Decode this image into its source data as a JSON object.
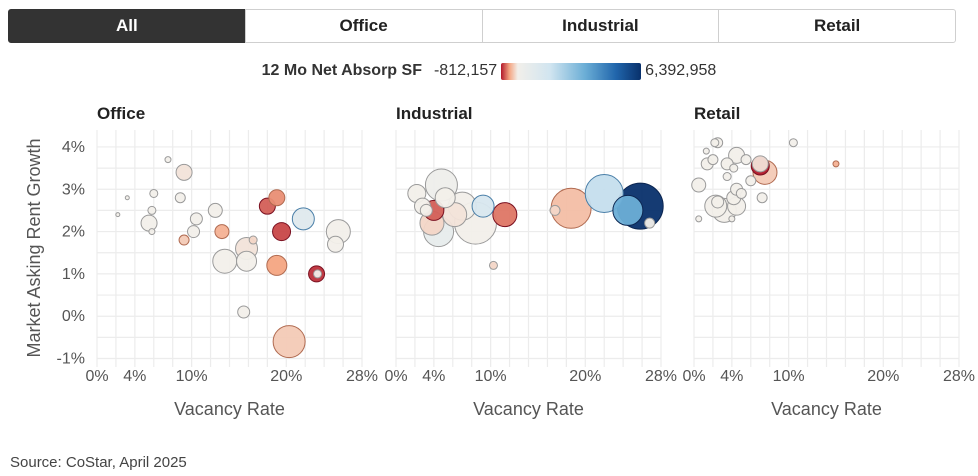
{
  "tabs": [
    {
      "label": "All",
      "active": true
    },
    {
      "label": "Office",
      "active": false
    },
    {
      "label": "Industrial",
      "active": false
    },
    {
      "label": "Retail",
      "active": false
    }
  ],
  "legend": {
    "title": "12 Mo Net Absorp SF",
    "min_label": "-812,157",
    "max_label": "6,392,958"
  },
  "source": "Source: CoStar, April 2025",
  "chart_data": {
    "type": "scatter",
    "ylabel": "Market Asking Rent Growth",
    "y_ticks": [
      "4%",
      "3%",
      "2%",
      "1%",
      "0%",
      "-1%"
    ],
    "y_tick_values": [
      4,
      3,
      2,
      1,
      0,
      -1
    ],
    "x_ticks": [
      "0%",
      "4%",
      "10%",
      "20%",
      "28%"
    ],
    "x_tick_values": [
      0,
      4,
      10,
      20,
      28
    ],
    "xlim": [
      0,
      28
    ],
    "ylim": [
      -1.2,
      4.4
    ],
    "absorption_range": [
      -812157,
      6392958
    ],
    "panels": [
      {
        "title": "Office",
        "xlabel": "Vacancy Rate",
        "points": [
          {
            "x": 7.5,
            "y": 3.7,
            "r": 3,
            "c": 0.12
          },
          {
            "x": 3.2,
            "y": 2.8,
            "r": 2,
            "c": 0.12
          },
          {
            "x": 2.2,
            "y": 2.4,
            "r": 2,
            "c": 0.12
          },
          {
            "x": 6.0,
            "y": 2.9,
            "r": 4,
            "c": 0.12
          },
          {
            "x": 5.8,
            "y": 2.5,
            "r": 4,
            "c": 0.12
          },
          {
            "x": 5.5,
            "y": 2.2,
            "r": 8,
            "c": 0.12
          },
          {
            "x": 5.8,
            "y": 2.0,
            "r": 3,
            "c": 0.12
          },
          {
            "x": 9.2,
            "y": 3.4,
            "r": 8,
            "c": 0.11
          },
          {
            "x": 8.8,
            "y": 2.8,
            "r": 5,
            "c": 0.12
          },
          {
            "x": 10.5,
            "y": 2.3,
            "r": 6,
            "c": 0.12
          },
          {
            "x": 10.2,
            "y": 2.0,
            "r": 6,
            "c": 0.12
          },
          {
            "x": 9.2,
            "y": 1.8,
            "r": 5,
            "c": 0.09
          },
          {
            "x": 12.5,
            "y": 2.5,
            "r": 7,
            "c": 0.12
          },
          {
            "x": 13.2,
            "y": 2.0,
            "r": 7,
            "c": 0.07
          },
          {
            "x": 13.5,
            "y": 1.3,
            "r": 12,
            "c": 0.12
          },
          {
            "x": 15.8,
            "y": 1.6,
            "r": 11,
            "c": 0.11
          },
          {
            "x": 15.8,
            "y": 1.3,
            "r": 10,
            "c": 0.12
          },
          {
            "x": 16.5,
            "y": 1.8,
            "r": 4,
            "c": 0.1
          },
          {
            "x": 18.0,
            "y": 2.6,
            "r": 8,
            "c": 0.03
          },
          {
            "x": 19.0,
            "y": 2.8,
            "r": 8,
            "c": 0.05
          },
          {
            "x": 19.0,
            "y": 1.2,
            "r": 10,
            "c": 0.06
          },
          {
            "x": 19.5,
            "y": 2.0,
            "r": 9,
            "c": 0.02
          },
          {
            "x": 15.5,
            "y": 0.1,
            "r": 6,
            "c": 0.12
          },
          {
            "x": 20.3,
            "y": -0.6,
            "r": 16,
            "c": 0.09
          },
          {
            "x": 21.8,
            "y": 2.3,
            "r": 11,
            "c": 0.25
          },
          {
            "x": 23.2,
            "y": 1.0,
            "r": 8,
            "c": 0.01
          },
          {
            "x": 23.3,
            "y": 1.0,
            "r": 4,
            "c": 0.12
          },
          {
            "x": 25.5,
            "y": 2.0,
            "r": 12,
            "c": 0.12
          },
          {
            "x": 25.2,
            "y": 1.7,
            "r": 8,
            "c": 0.12
          }
        ]
      },
      {
        "title": "Industrial",
        "xlabel": "Vacancy Rate",
        "points": [
          {
            "x": 2.2,
            "y": 2.9,
            "r": 9,
            "c": 0.12
          },
          {
            "x": 2.8,
            "y": 2.6,
            "r": 8,
            "c": 0.12
          },
          {
            "x": 3.2,
            "y": 2.5,
            "r": 6,
            "c": 0.12
          },
          {
            "x": 3.8,
            "y": 2.2,
            "r": 12,
            "c": 0.1
          },
          {
            "x": 4.0,
            "y": 2.5,
            "r": 10,
            "c": 0.03
          },
          {
            "x": 4.5,
            "y": 2.0,
            "r": 15,
            "c": 0.2
          },
          {
            "x": 4.8,
            "y": 3.1,
            "r": 16,
            "c": 0.15
          },
          {
            "x": 5.2,
            "y": 2.8,
            "r": 10,
            "c": 0.12
          },
          {
            "x": 6.2,
            "y": 2.4,
            "r": 12,
            "c": 0.11
          },
          {
            "x": 7.0,
            "y": 2.6,
            "r": 14,
            "c": 0.12
          },
          {
            "x": 9.2,
            "y": 2.6,
            "r": 11,
            "c": 0.3
          },
          {
            "x": 8.4,
            "y": 2.2,
            "r": 21,
            "c": 0.12
          },
          {
            "x": 11.5,
            "y": 2.4,
            "r": 12,
            "c": 0.04
          },
          {
            "x": 10.3,
            "y": 1.2,
            "r": 4,
            "c": 0.1
          },
          {
            "x": 16.8,
            "y": 2.5,
            "r": 5,
            "c": 0.1
          },
          {
            "x": 18.5,
            "y": 2.55,
            "r": 20,
            "c": 0.08
          },
          {
            "x": 22.0,
            "y": 2.9,
            "r": 19,
            "c": 0.38
          },
          {
            "x": 24.5,
            "y": 2.5,
            "r": 15,
            "c": 0.6
          },
          {
            "x": 25.8,
            "y": 2.6,
            "r": 23,
            "c": 1.0
          },
          {
            "x": 26.8,
            "y": 2.2,
            "r": 5,
            "c": 0.12
          }
        ]
      },
      {
        "title": "Retail",
        "xlabel": "Vacancy Rate",
        "points": [
          {
            "x": 1.3,
            "y": 3.9,
            "r": 3,
            "c": 0.12
          },
          {
            "x": 2.2,
            "y": 4.1,
            "r": 4,
            "c": 0.12
          },
          {
            "x": 2.5,
            "y": 4.1,
            "r": 5,
            "c": 0.12
          },
          {
            "x": 1.4,
            "y": 3.6,
            "r": 6,
            "c": 0.12
          },
          {
            "x": 2.0,
            "y": 3.7,
            "r": 5,
            "c": 0.12
          },
          {
            "x": 3.5,
            "y": 3.6,
            "r": 6,
            "c": 0.12
          },
          {
            "x": 4.5,
            "y": 3.8,
            "r": 8,
            "c": 0.12
          },
          {
            "x": 5.5,
            "y": 3.7,
            "r": 5,
            "c": 0.12
          },
          {
            "x": 0.5,
            "y": 3.1,
            "r": 7,
            "c": 0.12
          },
          {
            "x": 3.5,
            "y": 3.3,
            "r": 4,
            "c": 0.12
          },
          {
            "x": 4.2,
            "y": 3.5,
            "r": 4,
            "c": 0.12
          },
          {
            "x": 6.0,
            "y": 3.2,
            "r": 5,
            "c": 0.12
          },
          {
            "x": 4.5,
            "y": 3.0,
            "r": 6,
            "c": 0.12
          },
          {
            "x": 4.2,
            "y": 2.8,
            "r": 7,
            "c": 0.12
          },
          {
            "x": 2.5,
            "y": 2.7,
            "r": 6,
            "c": 0.12
          },
          {
            "x": 2.3,
            "y": 2.6,
            "r": 11,
            "c": 0.12
          },
          {
            "x": 3.2,
            "y": 2.5,
            "r": 12,
            "c": 0.12
          },
          {
            "x": 4.5,
            "y": 2.6,
            "r": 9,
            "c": 0.12
          },
          {
            "x": 5.0,
            "y": 2.9,
            "r": 5,
            "c": 0.12
          },
          {
            "x": 4.0,
            "y": 2.3,
            "r": 3,
            "c": 0.12
          },
          {
            "x": 0.5,
            "y": 2.3,
            "r": 3,
            "c": 0.12
          },
          {
            "x": 7.5,
            "y": 3.4,
            "r": 12,
            "c": 0.09
          },
          {
            "x": 7.0,
            "y": 3.6,
            "r": 8,
            "c": 0.11
          },
          {
            "x": 7.0,
            "y": 3.55,
            "r": 9,
            "c": 0.0
          },
          {
            "x": 7.2,
            "y": 2.8,
            "r": 5,
            "c": 0.12
          },
          {
            "x": 10.5,
            "y": 4.1,
            "r": 4,
            "c": 0.12
          },
          {
            "x": 15.0,
            "y": 3.6,
            "r": 3,
            "c": 0.07
          }
        ]
      }
    ]
  }
}
